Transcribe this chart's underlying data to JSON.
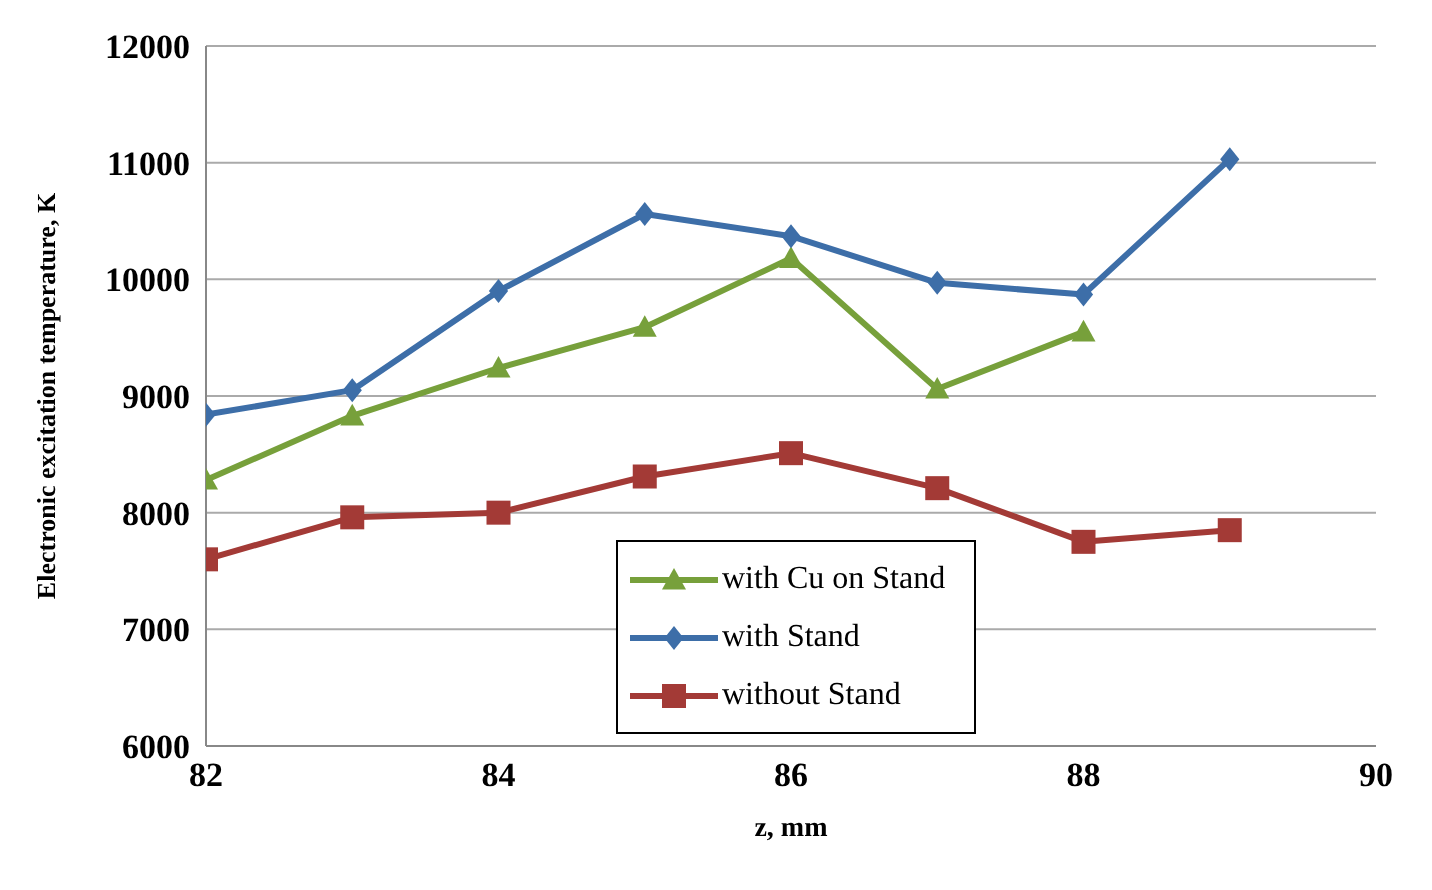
{
  "chart_data": {
    "type": "line",
    "xlabel": "z, mm",
    "ylabel": "Electronic  excitation  temperature,  K",
    "x": [
      82,
      83,
      84,
      85,
      86,
      87,
      88,
      89
    ],
    "xlim": [
      82,
      90
    ],
    "xticks": [
      82,
      84,
      86,
      88,
      90
    ],
    "ylim": [
      6000,
      12000
    ],
    "yticks": [
      6000,
      7000,
      8000,
      9000,
      10000,
      11000,
      12000
    ],
    "grid": "y",
    "legend": "bottom",
    "line_style": "solid",
    "series": [
      {
        "name": "with Cu on Stand",
        "color": "#77a03b",
        "marker": "triangle",
        "values": [
          8280,
          8830,
          9240,
          9590,
          10180,
          9060,
          9550,
          null
        ]
      },
      {
        "name": "with Stand",
        "color": "#3d6ea8",
        "marker": "diamond",
        "values": [
          8840,
          9050,
          9900,
          10560,
          10370,
          9970,
          9870,
          11030
        ]
      },
      {
        "name": "without Stand",
        "color": "#a33a36",
        "marker": "square",
        "values": [
          7600,
          7960,
          8000,
          8310,
          8510,
          8210,
          7750,
          7850
        ]
      }
    ]
  }
}
